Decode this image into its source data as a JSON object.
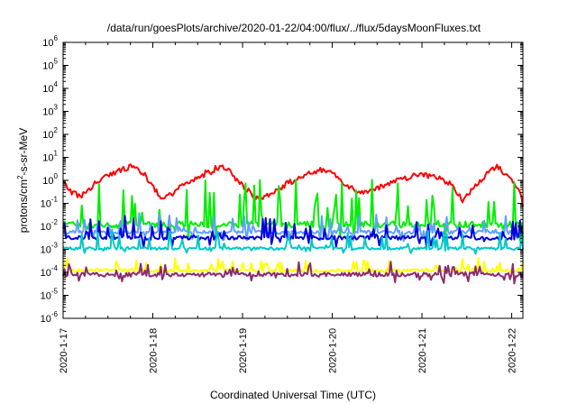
{
  "chart_data": {
    "type": "line",
    "title": "/data/run/goesPlots/archive/2020-01-22/04:00/flux/../flux/5daysMoonFluxes.txt",
    "xlabel": "Coordinated Universal Time (UTC)",
    "ylabel": {
      "prefix": "protons/cm",
      "sup": "2",
      "suffix": "-s-sr-MeV"
    },
    "yscale": "log",
    "ylim": [
      1e-06,
      1000000.0
    ],
    "xlim": [
      "2020-01-17",
      "2020-01-22 03:00"
    ],
    "x_ticks": [
      "2020-1-17",
      "2020-1-18",
      "2020-1-19",
      "2020-1-20",
      "2020-1-21",
      "2020-1-22"
    ],
    "y_tick_exponents": [
      -6,
      -5,
      -4,
      -3,
      -2,
      -1,
      0,
      1,
      2,
      3,
      4,
      5,
      6
    ],
    "y_tick_base": "10",
    "grid": false,
    "legend": "none",
    "series": [
      {
        "color": "#ff0000",
        "base": [
          [
            0.0,
            0.8
          ],
          [
            0.1,
            0.3
          ],
          [
            0.2,
            0.2
          ],
          [
            0.3,
            0.45
          ],
          [
            0.4,
            1.0
          ],
          [
            0.5,
            1.8
          ],
          [
            0.6,
            2.5
          ],
          [
            0.7,
            3.5
          ],
          [
            0.8,
            4.0
          ],
          [
            0.9,
            2.0
          ],
          [
            1.0,
            0.5
          ],
          [
            1.1,
            0.15
          ],
          [
            1.2,
            0.25
          ],
          [
            1.3,
            0.5
          ],
          [
            1.4,
            0.8
          ],
          [
            1.5,
            1.3
          ],
          [
            1.6,
            2.0
          ],
          [
            1.7,
            3.0
          ],
          [
            1.75,
            4.0
          ],
          [
            1.85,
            2.5
          ],
          [
            1.95,
            0.9
          ],
          [
            2.05,
            0.4
          ],
          [
            2.15,
            0.15
          ],
          [
            2.25,
            0.2
          ],
          [
            2.35,
            0.35
          ],
          [
            2.45,
            0.55
          ],
          [
            2.55,
            0.9
          ],
          [
            2.65,
            1.3
          ],
          [
            2.75,
            2.0
          ],
          [
            2.85,
            3.0
          ],
          [
            2.95,
            2.8
          ],
          [
            3.05,
            1.5
          ],
          [
            3.15,
            0.7
          ],
          [
            3.25,
            0.4
          ],
          [
            3.35,
            0.3
          ],
          [
            3.45,
            0.35
          ],
          [
            3.55,
            0.5
          ],
          [
            3.65,
            0.8
          ],
          [
            3.75,
            1.0
          ],
          [
            3.85,
            1.4
          ],
          [
            3.95,
            2.0
          ],
          [
            4.05,
            1.6
          ],
          [
            4.15,
            1.3
          ],
          [
            4.25,
            1.0
          ],
          [
            4.35,
            0.5
          ],
          [
            4.42,
            0.2
          ],
          [
            4.46,
            0.12
          ],
          [
            4.5,
            0.2
          ],
          [
            4.6,
            0.6
          ],
          [
            4.7,
            1.5
          ],
          [
            4.8,
            3.0
          ],
          [
            4.85,
            4.0
          ],
          [
            4.9,
            2.5
          ],
          [
            4.95,
            1.8
          ],
          [
            5.0,
            1.0
          ],
          [
            5.05,
            0.5
          ],
          [
            5.1,
            0.25
          ],
          [
            5.125,
            0.09
          ]
        ],
        "jitter": 0.5,
        "spikes": 0.1,
        "drops": 0.1
      },
      {
        "color": "#00ee00",
        "base": [
          [
            0.0,
            0.012
          ],
          [
            5.125,
            0.012
          ]
        ],
        "jitter": 0.55,
        "spikes": 4.0,
        "drops": 0.6
      },
      {
        "color": "#5f9fff",
        "base": [
          [
            0.0,
            0.0055
          ],
          [
            5.125,
            0.0055
          ]
        ],
        "jitter": 0.3,
        "spikes": 1.6,
        "drops": 0.45
      },
      {
        "color": "#0000dd",
        "base": [
          [
            0.0,
            0.0032
          ],
          [
            5.125,
            0.0032
          ]
        ],
        "jitter": 0.35,
        "spikes": 1.8,
        "drops": 0.4
      },
      {
        "color": "#00c8c8",
        "base": [
          [
            0.0,
            0.0011
          ],
          [
            5.125,
            0.0011
          ]
        ],
        "jitter": 0.25,
        "spikes": 1.6,
        "drops": 0.2
      },
      {
        "color": "#ffff00",
        "base": [
          [
            0.0,
            0.00012
          ],
          [
            5.125,
            0.00012
          ]
        ],
        "jitter": 0.3,
        "spikes": 1.0,
        "drops": 0.15
      },
      {
        "color": "#8b2a6e",
        "base": [
          [
            0.0,
            8e-05
          ],
          [
            5.125,
            8e-05
          ]
        ],
        "jitter": 0.35,
        "spikes": 1.1,
        "drops": 0.3
      }
    ]
  }
}
